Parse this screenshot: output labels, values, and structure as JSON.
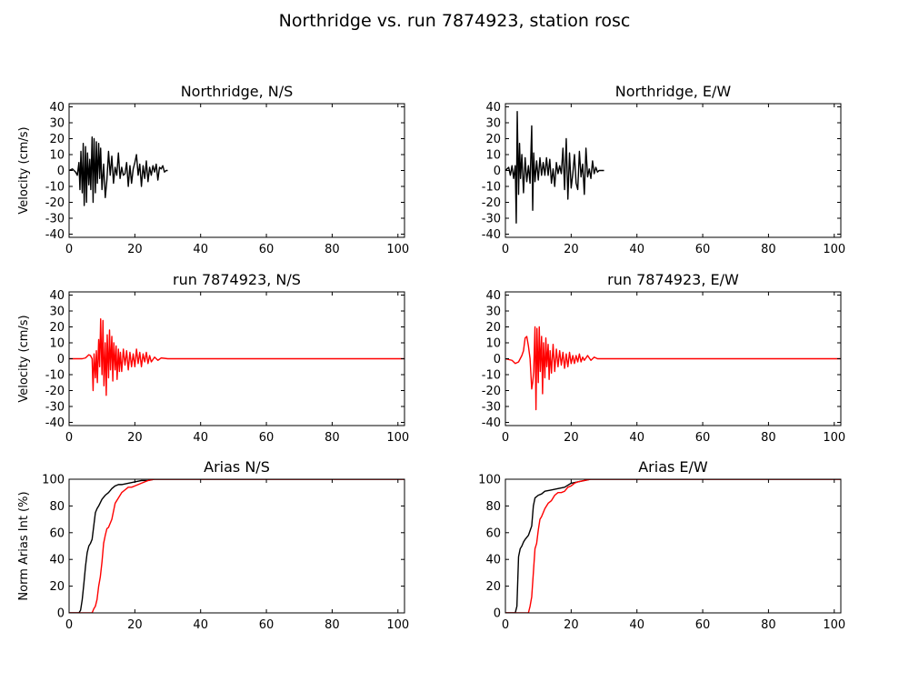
{
  "figure_title": "Northridge vs. run 7874923, station rosc",
  "colors": {
    "recorded": "#000000",
    "simulated": "#ff0000"
  },
  "chart_data": [
    {
      "type": "line",
      "title": "Northridge, N/S",
      "xlabel": "",
      "ylabel": "Velocity (cm/s)",
      "xlim": [
        0,
        102
      ],
      "ylim": [
        -42,
        42
      ],
      "xticks": [
        0,
        20,
        40,
        60,
        80,
        100
      ],
      "yticks": [
        -40,
        -30,
        -20,
        -10,
        0,
        10,
        20,
        30,
        40
      ],
      "series": [
        {
          "color": "#000000",
          "x": [
            0,
            1,
            2,
            2.5,
            3,
            3.3,
            3.6,
            4,
            4.3,
            4.6,
            5,
            5.3,
            5.6,
            6,
            6.3,
            6.6,
            7,
            7.3,
            7.6,
            8,
            8.3,
            8.6,
            9,
            9.3,
            9.6,
            10,
            10.5,
            11,
            11.5,
            12,
            12.5,
            13,
            13.5,
            14,
            14.5,
            15,
            15.5,
            16,
            16.5,
            17,
            17.5,
            18,
            18.5,
            19,
            19.5,
            20,
            20.5,
            21,
            21.5,
            22,
            22.5,
            23,
            23.5,
            24,
            24.5,
            25,
            25.5,
            26,
            26.5,
            27,
            27.5,
            28,
            28.5,
            29,
            29.5,
            30
          ],
          "y": [
            0,
            1,
            -1,
            -3,
            5,
            -12,
            12,
            -14,
            17,
            -22,
            15,
            -20,
            11,
            -9,
            7,
            -12,
            21,
            -20,
            20,
            -14,
            18,
            -8,
            17,
            -5,
            14,
            -12,
            4,
            -17,
            -6,
            12,
            -3,
            9,
            -8,
            2,
            -3,
            11,
            -5,
            2,
            -3,
            -2,
            5,
            -10,
            3,
            -8,
            1,
            5,
            10,
            -3,
            4,
            -10,
            3,
            -5,
            6,
            -7,
            2,
            -3,
            3,
            -1,
            4,
            -6,
            2,
            1,
            3,
            -1,
            0,
            0
          ]
        }
      ]
    },
    {
      "type": "line",
      "title": "Northridge, E/W",
      "xlabel": "",
      "ylabel": "",
      "xlim": [
        0,
        102
      ],
      "ylim": [
        -42,
        42
      ],
      "xticks": [
        0,
        20,
        40,
        60,
        80,
        100
      ],
      "yticks": [
        -40,
        -30,
        -20,
        -10,
        0,
        10,
        20,
        30,
        40
      ],
      "series": [
        {
          "color": "#000000",
          "x": [
            0,
            1,
            1.5,
            2,
            2.5,
            3,
            3.3,
            3.6,
            4,
            4.3,
            4.6,
            5,
            5.5,
            6,
            6.5,
            7,
            7.5,
            8,
            8.3,
            8.6,
            9,
            9.5,
            10,
            10.5,
            11,
            11.5,
            12,
            12.5,
            13,
            13.5,
            14,
            14.5,
            15,
            15.5,
            16,
            16.5,
            17,
            17.5,
            18,
            18.5,
            19,
            19.5,
            20,
            20.5,
            21,
            21.5,
            22,
            22.5,
            23,
            23.5,
            24,
            24.5,
            25,
            25.5,
            26,
            26.5,
            27,
            27.5,
            28,
            28.5,
            29,
            29.5,
            30
          ],
          "y": [
            0,
            2,
            -3,
            3,
            -5,
            3,
            -33,
            37,
            -15,
            17,
            -5,
            10,
            -14,
            8,
            -7,
            3,
            -8,
            28,
            -25,
            11,
            -7,
            6,
            -6,
            8,
            -3,
            5,
            -3,
            8,
            -3,
            7,
            -8,
            1,
            -10,
            5,
            -2,
            3,
            -2,
            14,
            -12,
            20,
            -18,
            11,
            -11,
            -2,
            10,
            -8,
            -12,
            12,
            -4,
            4,
            -15,
            14,
            -4,
            1,
            -5,
            6,
            -2,
            2,
            -1,
            0,
            0,
            0,
            0
          ]
        }
      ]
    },
    {
      "type": "line",
      "title": "run 7874923, N/S",
      "xlabel": "",
      "ylabel": "Velocity (cm/s)",
      "xlim": [
        0,
        102
      ],
      "ylim": [
        -42,
        42
      ],
      "xticks": [
        0,
        20,
        40,
        60,
        80,
        100
      ],
      "yticks": [
        -40,
        -30,
        -20,
        -10,
        0,
        10,
        20,
        30,
        40
      ],
      "series": [
        {
          "color": "#ff0000",
          "x": [
            0,
            2,
            4,
            5,
            5.5,
            6,
            6.5,
            7,
            7.3,
            7.6,
            8,
            8.3,
            8.6,
            9,
            9.3,
            9.6,
            10,
            10.3,
            10.6,
            11,
            11.3,
            11.6,
            12,
            12.3,
            12.6,
            13,
            13.3,
            13.6,
            14,
            14.3,
            14.6,
            15,
            15.3,
            15.6,
            16,
            16.5,
            17,
            17.5,
            18,
            18.5,
            19,
            19.5,
            20,
            20.5,
            21,
            21.5,
            22,
            22.5,
            23,
            23.5,
            24,
            24.5,
            25,
            26,
            27,
            28,
            30,
            35,
            40,
            50,
            60,
            70,
            80,
            90,
            102
          ],
          "y": [
            0,
            0,
            0,
            0.5,
            1.5,
            2.5,
            2,
            0,
            -20,
            3,
            -12,
            5,
            -15,
            12,
            -5,
            25,
            -10,
            24,
            -17,
            10,
            -23,
            15,
            -12,
            18,
            -7,
            14,
            -14,
            10,
            -7,
            8,
            -13,
            6,
            -8,
            4,
            -8,
            6,
            -4,
            5,
            -7,
            4,
            -5,
            3,
            -5,
            6,
            -3,
            4,
            -5,
            3,
            -2,
            4,
            -3,
            2,
            -2,
            1,
            -1,
            0.5,
            0,
            0,
            0,
            0,
            0,
            0,
            0,
            0,
            0
          ]
        }
      ]
    },
    {
      "type": "line",
      "title": "run 7874923, E/W",
      "xlabel": "",
      "ylabel": "",
      "xlim": [
        0,
        102
      ],
      "ylim": [
        -42,
        42
      ],
      "xticks": [
        0,
        20,
        40,
        60,
        80,
        100
      ],
      "yticks": [
        -40,
        -30,
        -20,
        -10,
        0,
        10,
        20,
        30,
        40
      ],
      "series": [
        {
          "color": "#ff0000",
          "x": [
            0,
            2,
            3,
            4,
            4.5,
            5,
            5.5,
            6,
            6.5,
            7,
            7.5,
            8,
            8.3,
            8.6,
            9,
            9.3,
            9.6,
            10,
            10.3,
            10.6,
            11,
            11.3,
            11.6,
            12,
            12.3,
            12.6,
            13,
            13.3,
            13.6,
            14,
            14.5,
            15,
            15.5,
            16,
            16.5,
            17,
            17.5,
            18,
            18.5,
            19,
            19.5,
            20,
            20.5,
            21,
            21.5,
            22,
            22.5,
            23,
            23.5,
            24,
            25,
            26,
            27,
            28,
            30,
            35,
            40,
            50,
            60,
            70,
            80,
            90,
            102
          ],
          "y": [
            0,
            -1,
            -3,
            -2,
            0,
            2,
            5,
            13,
            14,
            8,
            0,
            -19,
            -15,
            -8,
            20,
            -32,
            19,
            -15,
            20,
            -8,
            14,
            -22,
            10,
            -12,
            13,
            -5,
            9,
            -13,
            5,
            -9,
            9,
            -8,
            6,
            -5,
            5,
            -4,
            4,
            -6,
            3,
            -5,
            4,
            -3,
            2,
            -3,
            2,
            -2,
            3,
            -2,
            1,
            -1,
            2,
            -1,
            1,
            0,
            0,
            0,
            0,
            0,
            0,
            0,
            0,
            0,
            0
          ]
        }
      ]
    },
    {
      "type": "line",
      "title": "Arias N/S",
      "xlabel": "",
      "ylabel": "Norm Arias Int (%)",
      "xlim": [
        0,
        102
      ],
      "ylim": [
        0,
        100
      ],
      "xticks": [
        0,
        20,
        40,
        60,
        80,
        100
      ],
      "yticks": [
        0,
        20,
        40,
        60,
        80,
        100
      ],
      "series": [
        {
          "color": "#000000",
          "x": [
            0,
            3,
            3.5,
            4,
            4.5,
            5,
            5.5,
            6,
            6.5,
            7,
            7.5,
            8,
            8.5,
            9,
            10,
            11,
            12,
            13,
            14,
            15,
            16,
            18,
            20,
            22,
            24,
            26,
            28,
            30,
            102
          ],
          "y": [
            0,
            0,
            2,
            10,
            22,
            35,
            45,
            50,
            52,
            55,
            65,
            75,
            78,
            80,
            85,
            88,
            90,
            93,
            95,
            96,
            96,
            97,
            98,
            99,
            99,
            100,
            100,
            100,
            100
          ]
        },
        {
          "color": "#ff0000",
          "x": [
            0,
            7,
            7.5,
            8,
            8.5,
            9,
            9.5,
            10,
            10.5,
            11,
            11.5,
            12,
            13,
            14,
            15,
            16,
            17,
            18,
            19,
            20,
            22,
            24,
            26,
            28,
            30,
            102
          ],
          "y": [
            0,
            0,
            3,
            5,
            10,
            20,
            27,
            38,
            52,
            58,
            63,
            64,
            70,
            82,
            86,
            90,
            92,
            94,
            94,
            95,
            97,
            99,
            100,
            100,
            100,
            100
          ]
        }
      ]
    },
    {
      "type": "line",
      "title": "Arias E/W",
      "xlabel": "",
      "ylabel": "",
      "xlim": [
        0,
        102
      ],
      "ylim": [
        0,
        100
      ],
      "xticks": [
        0,
        20,
        40,
        60,
        80,
        100
      ],
      "yticks": [
        0,
        20,
        40,
        60,
        80,
        100
      ],
      "series": [
        {
          "color": "#000000",
          "x": [
            0,
            3,
            3.5,
            4,
            4.5,
            5,
            5.5,
            6,
            7,
            8,
            8.5,
            9,
            10,
            11,
            12,
            14,
            16,
            18,
            20,
            22,
            24,
            26,
            28,
            30,
            102
          ],
          "y": [
            0,
            0,
            5,
            42,
            48,
            50,
            53,
            55,
            58,
            65,
            80,
            86,
            88,
            89,
            91,
            92,
            93,
            94,
            97,
            98,
            99,
            100,
            100,
            100,
            100
          ]
        },
        {
          "color": "#ff0000",
          "x": [
            0,
            7,
            7.5,
            8,
            8.5,
            9,
            9.5,
            10,
            10.5,
            11,
            12,
            13,
            14,
            15,
            16,
            17,
            18,
            19,
            20,
            21,
            22,
            24,
            26,
            28,
            30,
            102
          ],
          "y": [
            0,
            0,
            5,
            12,
            30,
            48,
            52,
            62,
            70,
            72,
            78,
            82,
            84,
            88,
            90,
            90,
            91,
            94,
            95,
            97,
            98,
            99,
            100,
            100,
            100,
            100
          ]
        }
      ]
    }
  ]
}
